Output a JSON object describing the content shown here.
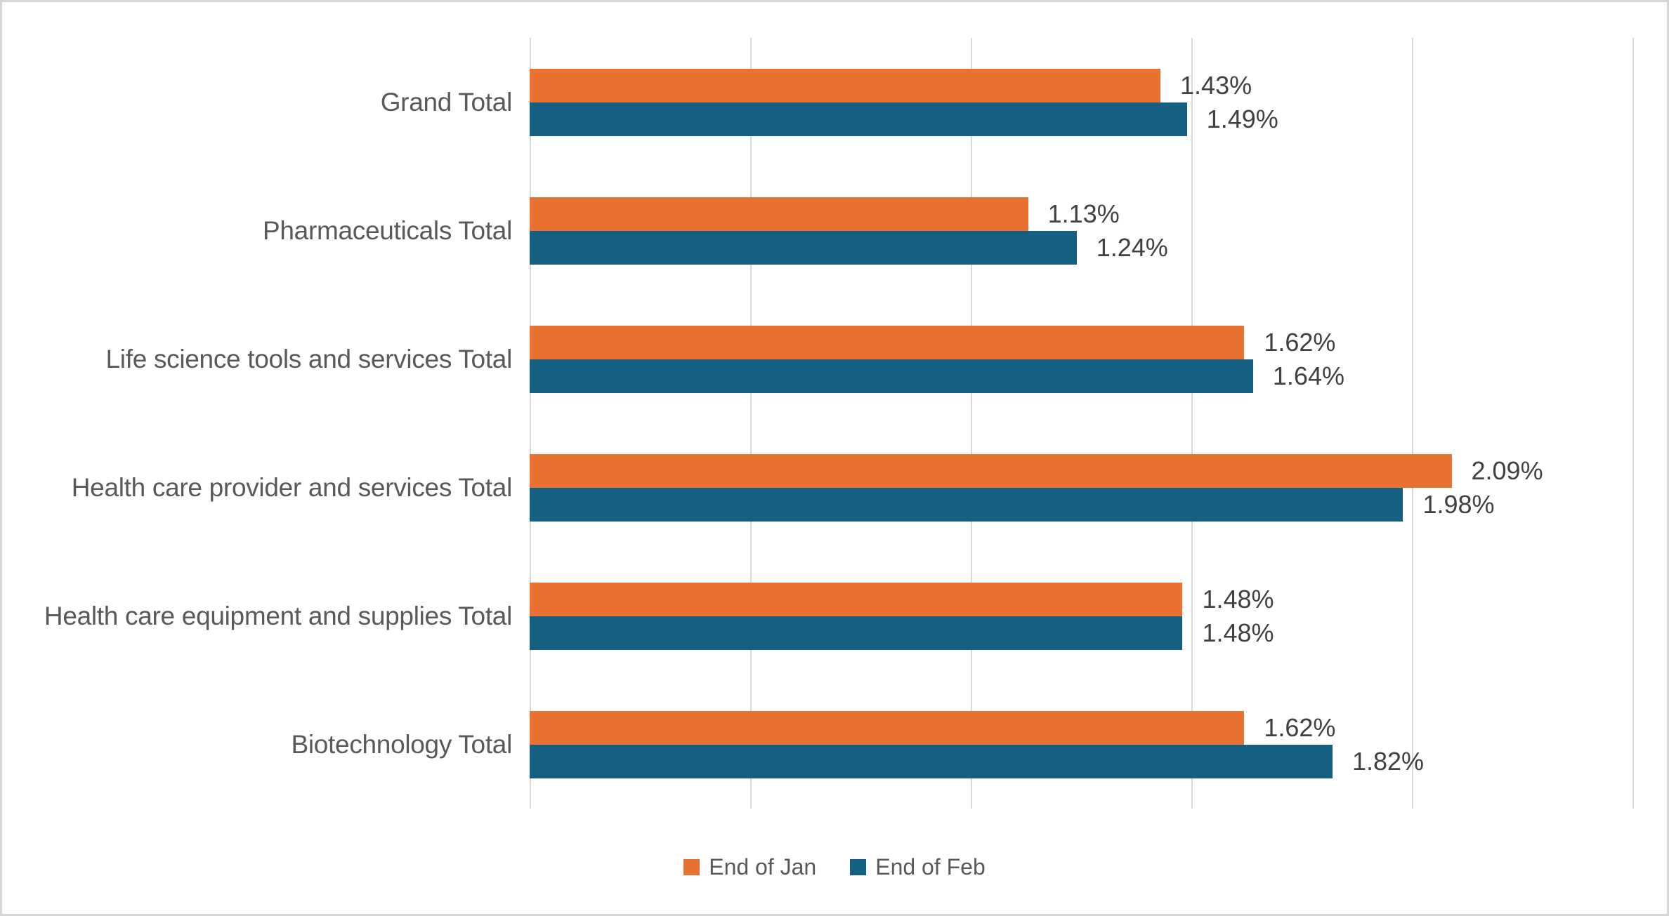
{
  "chart_data": {
    "type": "bar",
    "orientation": "horizontal",
    "title": "",
    "categories": [
      "Grand Total",
      "Pharmaceuticals Total",
      "Life science tools and services Total",
      "Health care provider and services Total",
      "Health care equipment and supplies Total",
      "Biotechnology Total"
    ],
    "series": [
      {
        "name": "End of Jan",
        "color": "#E97132",
        "values": [
          1.43,
          1.13,
          1.62,
          2.09,
          1.48,
          1.62
        ],
        "labels": [
          "1.43%",
          "1.13%",
          "1.62%",
          "2.09%",
          "1.48%",
          "1.62%"
        ]
      },
      {
        "name": "End of Feb",
        "color": "#156082",
        "values": [
          1.49,
          1.24,
          1.64,
          1.98,
          1.48,
          1.82
        ],
        "labels": [
          "1.49%",
          "1.24%",
          "1.64%",
          "1.98%",
          "1.48%",
          "1.82%"
        ]
      }
    ],
    "xlim": [
      0,
      2.5
    ],
    "gridline_step": 0.5,
    "grid": true,
    "x_axis_tick_labels_visible": false,
    "data_labels_visible": true,
    "legend_position": "bottom",
    "legend_entries": [
      "End of Jan",
      "End of Feb"
    ]
  },
  "colors": {
    "grid": "#d9d9d9",
    "axis_line": "#d9d9d9",
    "category_text": "#595959",
    "data_label_text": "#404040",
    "legend_text": "#595959",
    "background": "#ffffff",
    "border": "#d6d6d6"
  }
}
